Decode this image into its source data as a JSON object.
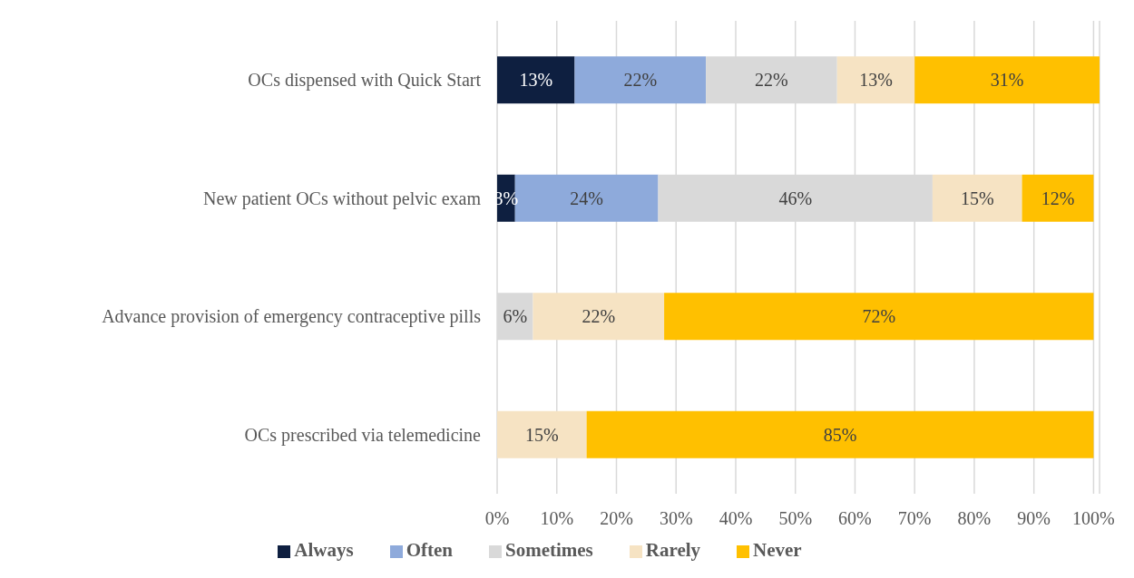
{
  "chart_data": {
    "type": "bar",
    "orientation": "horizontal",
    "stacked": true,
    "categories": [
      "OCs dispensed with Quick Start",
      "New patient OCs without pelvic exam",
      "Advance provision of emergency contraceptive pills",
      "OCs prescribed via telemedicine"
    ],
    "series": [
      {
        "name": "Always",
        "color": "#0e1f40",
        "values": [
          13,
          3,
          null,
          null
        ],
        "value_labels": [
          "13%",
          "3%",
          null,
          null
        ]
      },
      {
        "name": "Often",
        "color": "#8eaadb",
        "values": [
          22,
          24,
          null,
          null
        ],
        "value_labels": [
          "22%",
          "24%",
          null,
          null
        ]
      },
      {
        "name": "Sometimes",
        "color": "#d9d9d9",
        "values": [
          22,
          46,
          6,
          null
        ],
        "value_labels": [
          "22%",
          "46%",
          "6%",
          null
        ]
      },
      {
        "name": "Rarely",
        "color": "#f6e3c3",
        "values": [
          13,
          15,
          22,
          15
        ],
        "value_labels": [
          "13%",
          "15%",
          "22%",
          "15%"
        ]
      },
      {
        "name": "Never",
        "color": "#ffc000",
        "values": [
          31,
          12,
          72,
          85
        ],
        "value_labels": [
          "31%",
          "12%",
          "72%",
          "85%"
        ]
      }
    ],
    "xlim": [
      0,
      101
    ],
    "xticks": [
      {
        "value": 0,
        "label": "0%"
      },
      {
        "value": 10,
        "label": "10%"
      },
      {
        "value": 20,
        "label": "20%"
      },
      {
        "value": 30,
        "label": "30%"
      },
      {
        "value": 40,
        "label": "40%"
      },
      {
        "value": 50,
        "label": "50%"
      },
      {
        "value": 60,
        "label": "60%"
      },
      {
        "value": 70,
        "label": "70%"
      },
      {
        "value": 80,
        "label": "80%"
      },
      {
        "value": 90,
        "label": "90%"
      },
      {
        "value": 100,
        "label": "100%"
      }
    ],
    "grid": "x",
    "legend": "bottom"
  }
}
